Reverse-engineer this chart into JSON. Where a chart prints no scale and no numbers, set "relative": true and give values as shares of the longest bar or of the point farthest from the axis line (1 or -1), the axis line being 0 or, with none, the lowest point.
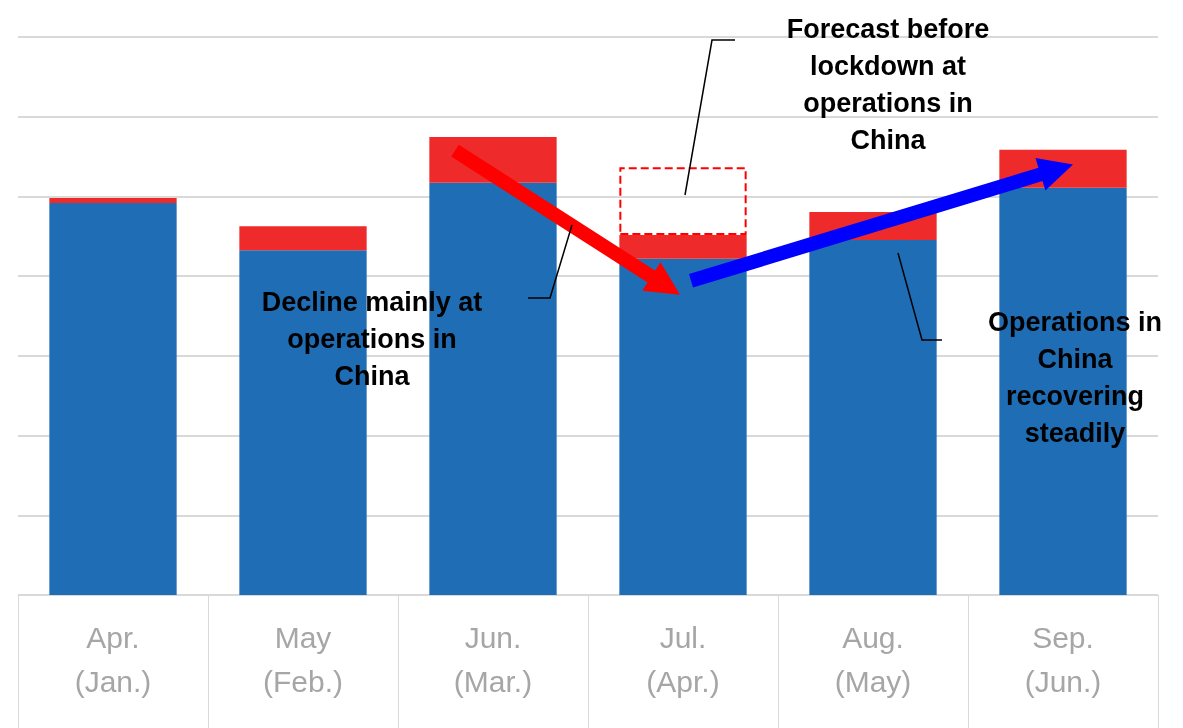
{
  "chart_data": {
    "type": "bar",
    "relative": true,
    "stacked": true,
    "grid": true,
    "categories": [
      "Apr.\n(Jan.)",
      "May\n(Feb.)",
      "Jun.\n(Mar.)",
      "Jul.\n(Apr.)",
      "Aug.\n(May)",
      "Sep.\n(Jun.)"
    ],
    "series": [
      {
        "color": "#1f6db5",
        "values": [
          0.856,
          0.753,
          0.9,
          0.734,
          0.775,
          0.889
        ]
      },
      {
        "color": "#ee2a2a",
        "values": [
          0.011,
          0.052,
          0.1,
          0.052,
          0.061,
          0.083
        ]
      },
      {
        "color": "#ff0000",
        "line_style": "dashed",
        "values": [
          null,
          null,
          null,
          0.148,
          null,
          null
        ]
      }
    ],
    "annotations": [
      "Forecast before\nlockdown at\noperations in\nChina",
      "Decline mainly at\noperations in\nChina",
      "Operations in\nChina\nrecovering\nsteadily"
    ]
  }
}
